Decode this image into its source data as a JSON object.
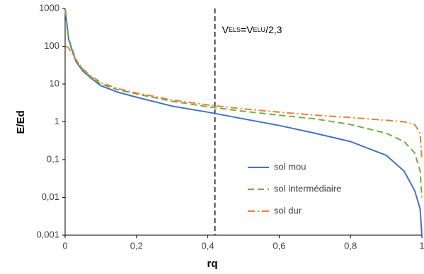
{
  "chart_data": {
    "type": "line",
    "x_label": "rq",
    "y_label": "E/Ed",
    "x": [
      0.001,
      0.01,
      0.03,
      0.05,
      0.07,
      0.1,
      0.15,
      0.2,
      0.3,
      0.4,
      0.5,
      0.6,
      0.7,
      0.8,
      0.9,
      0.95,
      0.98,
      0.995,
      1
    ],
    "series": [
      {
        "name": "sol mou",
        "color": "#4472c4",
        "style": "solid",
        "values": [
          800,
          150,
          40,
          22,
          15,
          9,
          6,
          4.5,
          2.6,
          1.8,
          1.2,
          0.8,
          0.5,
          0.3,
          0.13,
          0.05,
          0.015,
          0.005,
          0.001
        ]
      },
      {
        "name": "sol intermédiaire",
        "color": "#70ad47",
        "style": "dashed",
        "values": [
          900,
          160,
          45,
          24,
          16,
          10,
          7,
          5.5,
          3.5,
          2.5,
          1.9,
          1.5,
          1.2,
          0.85,
          0.5,
          0.3,
          0.15,
          0.05,
          0.01
        ]
      },
      {
        "name": "sol dur",
        "color": "#ed7d31",
        "style": "dashdot",
        "values": [
          100,
          90,
          45,
          25,
          17,
          11,
          7.5,
          5.8,
          3.8,
          2.8,
          2.2,
          1.8,
          1.5,
          1.3,
          1.1,
          1.0,
          0.85,
          0.5,
          0.1
        ]
      }
    ],
    "xlim": [
      0,
      1
    ],
    "xticks": [
      0,
      {
        "value": 0.2,
        "label": "0,2"
      },
      {
        "value": 0.4,
        "label": "0,4"
      },
      {
        "value": 0.6,
        "label": "0,6"
      },
      {
        "value": 0.8,
        "label": "0,8"
      },
      1
    ],
    "ylim": [
      0.001,
      1000
    ],
    "y_log": true,
    "yticks": [
      {
        "value": 0.001,
        "label": "0,001"
      },
      {
        "value": 0.01,
        "label": "0,01"
      },
      {
        "value": 0.1,
        "label": "0,1"
      },
      1,
      10,
      100,
      1000
    ],
    "grid": false,
    "legend": "lower right",
    "vline": {
      "x": 0.42,
      "color": "#000000",
      "label": [
        "V",
        "ELS",
        "=V",
        "ELU",
        "/2,3"
      ]
    }
  }
}
